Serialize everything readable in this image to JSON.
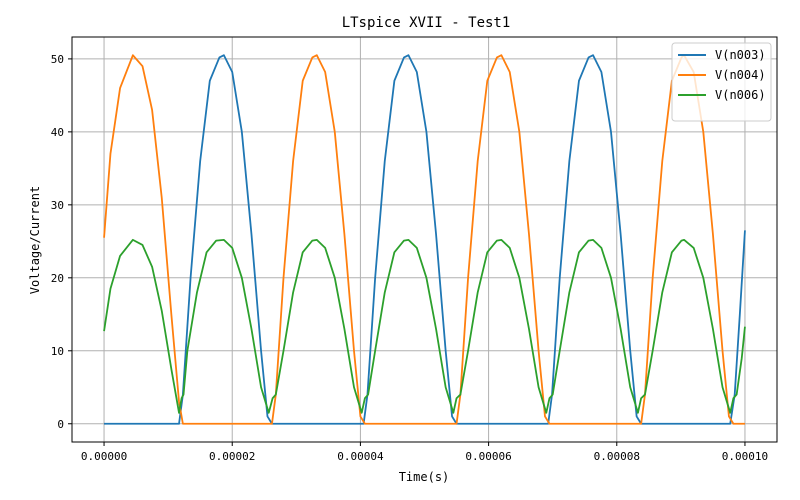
{
  "chart_data": {
    "type": "line",
    "title": "LTspice XVII - Test1",
    "xlabel": "Time(s)",
    "ylabel": "Voltage/Current",
    "xlim": [
      -5e-06,
      0.000105
    ],
    "ylim": [
      -2.5,
      53
    ],
    "xticks": [
      0,
      2e-05,
      4e-05,
      6e-05,
      8e-05,
      0.0001
    ],
    "xtick_labels": [
      "0.00000",
      "0.00002",
      "0.00004",
      "0.00006",
      "0.00008",
      "0.00010"
    ],
    "yticks": [
      0,
      10,
      20,
      30,
      40,
      50
    ],
    "ytick_labels": [
      "0",
      "10",
      "20",
      "30",
      "40",
      "50"
    ],
    "grid": true,
    "legend_position": "top-right",
    "series": [
      {
        "name": "V(n003)",
        "color": "#1f77b4",
        "points": [
          [
            0,
            0
          ],
          [
            1.17e-05,
            0
          ],
          [
            1.23e-05,
            4
          ],
          [
            1.35e-05,
            20
          ],
          [
            1.5e-05,
            36
          ],
          [
            1.65e-05,
            47
          ],
          [
            1.8e-05,
            50.2
          ],
          [
            1.87e-05,
            50.5
          ],
          [
            2e-05,
            48.2
          ],
          [
            2.15e-05,
            40
          ],
          [
            2.3e-05,
            26
          ],
          [
            2.45e-05,
            10
          ],
          [
            2.55e-05,
            1
          ],
          [
            2.62e-05,
            0
          ],
          [
            4.05e-05,
            0
          ],
          [
            4.11e-05,
            4
          ],
          [
            4.23e-05,
            20
          ],
          [
            4.38e-05,
            36
          ],
          [
            4.53e-05,
            47
          ],
          [
            4.68e-05,
            50.2
          ],
          [
            4.75e-05,
            50.5
          ],
          [
            4.88e-05,
            48.2
          ],
          [
            5.03e-05,
            40
          ],
          [
            5.18e-05,
            26
          ],
          [
            5.33e-05,
            10
          ],
          [
            5.43e-05,
            1
          ],
          [
            5.5e-05,
            0
          ],
          [
            6.93e-05,
            0
          ],
          [
            6.99e-05,
            4
          ],
          [
            7.11e-05,
            20
          ],
          [
            7.26e-05,
            36
          ],
          [
            7.41e-05,
            47
          ],
          [
            7.56e-05,
            50.2
          ],
          [
            7.63e-05,
            50.5
          ],
          [
            7.76e-05,
            48.2
          ],
          [
            7.91e-05,
            40
          ],
          [
            8.06e-05,
            26
          ],
          [
            8.21e-05,
            10
          ],
          [
            8.31e-05,
            1
          ],
          [
            8.38e-05,
            0
          ],
          [
            9.77e-05,
            0
          ],
          [
            9.84e-05,
            4
          ],
          [
            9.92e-05,
            15
          ],
          [
            0.0001,
            26.5
          ]
        ]
      },
      {
        "name": "V(n004)",
        "color": "#ff7f0e",
        "points": [
          [
            0,
            25.5
          ],
          [
            1e-06,
            37
          ],
          [
            2.5e-06,
            46
          ],
          [
            4.5e-06,
            50.5
          ],
          [
            6e-06,
            49
          ],
          [
            7.5e-06,
            43
          ],
          [
            9e-06,
            31
          ],
          [
            1.05e-05,
            15
          ],
          [
            1.17e-05,
            3
          ],
          [
            1.23e-05,
            0
          ],
          [
            2.62e-05,
            0
          ],
          [
            2.68e-05,
            4
          ],
          [
            2.8e-05,
            20
          ],
          [
            2.95e-05,
            36
          ],
          [
            3.1e-05,
            47
          ],
          [
            3.25e-05,
            50.2
          ],
          [
            3.32e-05,
            50.5
          ],
          [
            3.45e-05,
            48.2
          ],
          [
            3.6e-05,
            40
          ],
          [
            3.75e-05,
            26
          ],
          [
            3.9e-05,
            10
          ],
          [
            4e-05,
            1
          ],
          [
            4.07e-05,
            0
          ],
          [
            5.5e-05,
            0
          ],
          [
            5.56e-05,
            4
          ],
          [
            5.68e-05,
            20
          ],
          [
            5.83e-05,
            36
          ],
          [
            5.98e-05,
            47
          ],
          [
            6.13e-05,
            50.2
          ],
          [
            6.2e-05,
            50.5
          ],
          [
            6.33e-05,
            48.2
          ],
          [
            6.48e-05,
            40
          ],
          [
            6.63e-05,
            26
          ],
          [
            6.78e-05,
            10
          ],
          [
            6.88e-05,
            1
          ],
          [
            6.95e-05,
            0
          ],
          [
            8.38e-05,
            0
          ],
          [
            8.44e-05,
            4
          ],
          [
            8.56e-05,
            20
          ],
          [
            8.71e-05,
            36
          ],
          [
            8.86e-05,
            47
          ],
          [
            9.01e-05,
            50.2
          ],
          [
            9.05e-05,
            50.5
          ],
          [
            9.2e-05,
            48.2
          ],
          [
            9.35e-05,
            40
          ],
          [
            9.5e-05,
            26
          ],
          [
            9.65e-05,
            10
          ],
          [
            9.75e-05,
            1
          ],
          [
            9.82e-05,
            0
          ],
          [
            0.0001,
            0
          ]
        ]
      },
      {
        "name": "V(n006)",
        "color": "#2ca02c",
        "points": [
          [
            0,
            12.7
          ],
          [
            1e-06,
            18.5
          ],
          [
            2.5e-06,
            23
          ],
          [
            4.5e-06,
            25.2
          ],
          [
            6e-06,
            24.5
          ],
          [
            7.5e-06,
            21.5
          ],
          [
            9e-06,
            15.5
          ],
          [
            1.05e-05,
            7.5
          ],
          [
            1.17e-05,
            1.5
          ],
          [
            1.21e-05,
            3.5
          ],
          [
            1.24e-05,
            4
          ],
          [
            1.3e-05,
            10
          ],
          [
            1.45e-05,
            18
          ],
          [
            1.6e-05,
            23.5
          ],
          [
            1.75e-05,
            25.1
          ],
          [
            1.87e-05,
            25.2
          ],
          [
            2e-05,
            24.1
          ],
          [
            2.15e-05,
            20
          ],
          [
            2.3e-05,
            13
          ],
          [
            2.45e-05,
            5
          ],
          [
            2.57e-05,
            1.5
          ],
          [
            2.63e-05,
            3.5
          ],
          [
            2.68e-05,
            4
          ],
          [
            2.8e-05,
            10
          ],
          [
            2.95e-05,
            18
          ],
          [
            3.1e-05,
            23.5
          ],
          [
            3.25e-05,
            25.1
          ],
          [
            3.32e-05,
            25.2
          ],
          [
            3.45e-05,
            24.1
          ],
          [
            3.6e-05,
            20
          ],
          [
            3.75e-05,
            13
          ],
          [
            3.9e-05,
            5
          ],
          [
            4.02e-05,
            1.5
          ],
          [
            4.07e-05,
            3.5
          ],
          [
            4.12e-05,
            4
          ],
          [
            4.23e-05,
            10
          ],
          [
            4.38e-05,
            18
          ],
          [
            4.53e-05,
            23.5
          ],
          [
            4.68e-05,
            25.1
          ],
          [
            4.75e-05,
            25.2
          ],
          [
            4.88e-05,
            24.1
          ],
          [
            5.03e-05,
            20
          ],
          [
            5.18e-05,
            13
          ],
          [
            5.33e-05,
            5
          ],
          [
            5.45e-05,
            1.5
          ],
          [
            5.5e-05,
            3.5
          ],
          [
            5.56e-05,
            4
          ],
          [
            5.68e-05,
            10
          ],
          [
            5.83e-05,
            18
          ],
          [
            5.98e-05,
            23.5
          ],
          [
            6.13e-05,
            25.1
          ],
          [
            6.2e-05,
            25.2
          ],
          [
            6.33e-05,
            24.1
          ],
          [
            6.48e-05,
            20
          ],
          [
            6.63e-05,
            13
          ],
          [
            6.78e-05,
            5
          ],
          [
            6.9e-05,
            1.5
          ],
          [
            6.95e-05,
            3.5
          ],
          [
            7e-05,
            4
          ],
          [
            7.11e-05,
            10
          ],
          [
            7.26e-05,
            18
          ],
          [
            7.41e-05,
            23.5
          ],
          [
            7.56e-05,
            25.1
          ],
          [
            7.63e-05,
            25.2
          ],
          [
            7.76e-05,
            24.1
          ],
          [
            7.91e-05,
            20
          ],
          [
            8.06e-05,
            13
          ],
          [
            8.21e-05,
            5
          ],
          [
            8.33e-05,
            1.5
          ],
          [
            8.38e-05,
            3.5
          ],
          [
            8.44e-05,
            4
          ],
          [
            8.56e-05,
            10
          ],
          [
            8.71e-05,
            18
          ],
          [
            8.86e-05,
            23.5
          ],
          [
            9.01e-05,
            25.1
          ],
          [
            9.05e-05,
            25.2
          ],
          [
            9.2e-05,
            24.1
          ],
          [
            9.35e-05,
            20
          ],
          [
            9.5e-05,
            13
          ],
          [
            9.65e-05,
            5
          ],
          [
            9.77e-05,
            1.5
          ],
          [
            9.82e-05,
            3.5
          ],
          [
            9.87e-05,
            4
          ],
          [
            9.95e-05,
            9
          ],
          [
            0.0001,
            13.3
          ]
        ]
      }
    ]
  }
}
